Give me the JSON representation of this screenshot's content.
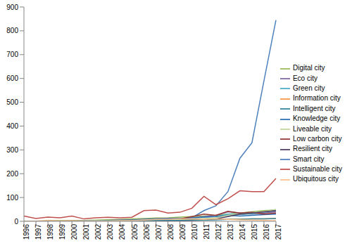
{
  "chart_data": {
    "type": "line",
    "categories": [
      "1996",
      "1997",
      "1998",
      "1999",
      "2000",
      "2001",
      "2002",
      "2003",
      "2004",
      "2005",
      "2006",
      "2007",
      "2008",
      "2009",
      "2010",
      "2011",
      "2012",
      "2013",
      "2014",
      "2015",
      "2016",
      "2017"
    ],
    "ylim": [
      0,
      900
    ],
    "yticks": [
      0,
      100,
      200,
      300,
      400,
      500,
      600,
      700,
      800,
      900
    ],
    "grid": false,
    "legend": "right",
    "series": [
      {
        "name": "Smart city",
        "color": "#4F81BD",
        "values": [
          0,
          0,
          0,
          0,
          1,
          1,
          2,
          3,
          3,
          4,
          5,
          6,
          8,
          8,
          15,
          45,
          65,
          125,
          265,
          330,
          590,
          845
        ]
      },
      {
        "name": "Sustainable city",
        "color": "#C0504D",
        "values": [
          22,
          12,
          18,
          15,
          22,
          10,
          15,
          17,
          15,
          17,
          45,
          47,
          35,
          38,
          55,
          105,
          70,
          95,
          128,
          125,
          125,
          180
        ]
      },
      {
        "name": "Digital city",
        "color": "#9BBB59",
        "values": [
          0,
          1,
          2,
          3,
          3,
          4,
          5,
          7,
          8,
          10,
          12,
          14,
          15,
          18,
          20,
          22,
          25,
          30,
          35,
          40,
          45,
          48
        ]
      },
      {
        "name": "Eco city",
        "color": "#8064A2",
        "values": [
          0,
          0,
          1,
          1,
          2,
          2,
          3,
          4,
          5,
          6,
          8,
          10,
          12,
          12,
          15,
          20,
          25,
          40,
          35,
          30,
          35,
          40
        ]
      },
      {
        "name": "Green city",
        "color": "#4BACC6",
        "values": [
          0,
          0,
          0,
          1,
          1,
          1,
          2,
          2,
          3,
          4,
          5,
          6,
          8,
          10,
          12,
          18,
          20,
          30,
          28,
          32,
          38,
          45
        ]
      },
      {
        "name": "Information city",
        "color": "#F79646",
        "values": [
          1,
          1,
          2,
          2,
          3,
          3,
          4,
          4,
          5,
          5,
          5,
          6,
          6,
          7,
          7,
          8,
          8,
          9,
          9,
          10,
          10,
          12
        ]
      },
      {
        "name": "Knowledge city",
        "color": "#2C6FB5",
        "values": [
          0,
          0,
          0,
          1,
          1,
          2,
          3,
          4,
          5,
          6,
          8,
          10,
          10,
          12,
          15,
          18,
          20,
          25,
          22,
          25,
          28,
          30
        ]
      },
      {
        "name": "Low carbon city",
        "color": "#943634",
        "values": [
          0,
          0,
          0,
          0,
          0,
          0,
          0,
          0,
          0,
          0,
          1,
          2,
          5,
          10,
          20,
          30,
          25,
          42,
          35,
          38,
          30,
          35
        ]
      },
      {
        "name": "Liveable city",
        "color": "#C3D69B",
        "values": [
          1,
          1,
          1,
          2,
          2,
          2,
          3,
          3,
          4,
          4,
          5,
          5,
          6,
          8,
          10,
          12,
          15,
          25,
          30,
          35,
          40,
          50
        ]
      },
      {
        "name": "Resilient city",
        "color": "#4D3B62",
        "values": [
          0,
          0,
          0,
          0,
          0,
          0,
          0,
          0,
          0,
          0,
          0,
          1,
          1,
          2,
          3,
          5,
          10,
          20,
          30,
          35,
          40,
          45
        ]
      },
      {
        "name": "Intelligent city",
        "color": "#31859C",
        "values": [
          0,
          0,
          0,
          0,
          1,
          1,
          1,
          2,
          2,
          2,
          3,
          3,
          4,
          4,
          5,
          5,
          6,
          8,
          8,
          10,
          10,
          12
        ]
      },
      {
        "name": "Ubiquitous city",
        "color": "#FAC090",
        "values": [
          0,
          0,
          0,
          0,
          0,
          0,
          0,
          1,
          2,
          3,
          5,
          8,
          8,
          10,
          10,
          8,
          10,
          8,
          6,
          5,
          4,
          3
        ]
      }
    ]
  }
}
